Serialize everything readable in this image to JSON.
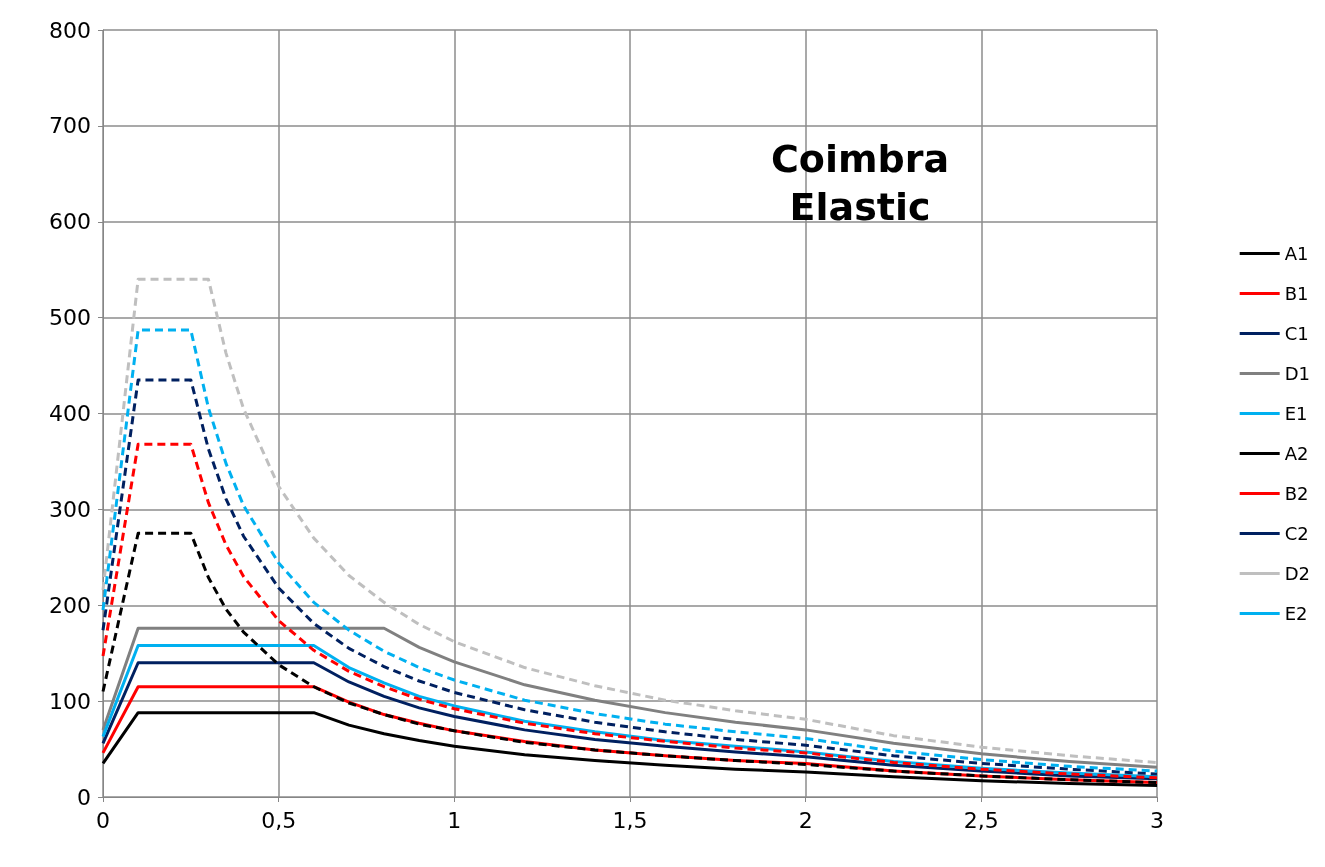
{
  "chart_data": {
    "type": "line",
    "title": "Coimbra\nElastic",
    "xlim": [
      0,
      3
    ],
    "xticks": [
      0,
      {
        "value": 0.5,
        "label": "0,5"
      },
      1,
      {
        "value": 1.5,
        "label": "1,5"
      },
      2,
      {
        "value": 2.5,
        "label": "2,5"
      },
      3
    ],
    "ylim": [
      0,
      800
    ],
    "yticks": [
      0,
      100,
      200,
      300,
      400,
      500,
      600,
      700,
      800
    ],
    "grid": true,
    "legend": "right",
    "marker": "none",
    "series": [
      {
        "name": "A1",
        "color": "#000000",
        "line_style": "solid",
        "x": [
          0,
          0.1,
          0.6,
          0.7,
          0.8,
          0.9,
          1,
          1.2,
          1.4,
          1.6,
          1.8,
          2,
          2.25,
          2.5,
          2.75,
          3
        ],
        "values": [
          35,
          88,
          88,
          75,
          66,
          59,
          53,
          44,
          38,
          33,
          29,
          26,
          21,
          17,
          14,
          12
        ]
      },
      {
        "name": "B1",
        "color": "#ff0000",
        "line_style": "solid",
        "x": [
          0,
          0.1,
          0.6,
          0.7,
          0.8,
          0.9,
          1,
          1.2,
          1.4,
          1.6,
          1.8,
          2,
          2.25,
          2.5,
          2.75,
          3
        ],
        "values": [
          46,
          115,
          115,
          99,
          86,
          77,
          69,
          58,
          49,
          43,
          38,
          35,
          27,
          22,
          18,
          15
        ]
      },
      {
        "name": "C1",
        "color": "#002060",
        "line_style": "solid",
        "x": [
          0,
          0.1,
          0.6,
          0.7,
          0.8,
          0.9,
          1,
          1.2,
          1.4,
          1.6,
          1.8,
          2,
          2.25,
          2.5,
          2.75,
          3
        ],
        "values": [
          56,
          140,
          140,
          120,
          105,
          93,
          84,
          70,
          60,
          53,
          47,
          42,
          33,
          27,
          22,
          19
        ]
      },
      {
        "name": "D1",
        "color": "#808080",
        "line_style": "solid",
        "x": [
          0,
          0.1,
          0.8,
          0.9,
          1,
          1.2,
          1.4,
          1.6,
          1.8,
          2,
          2.25,
          2.5,
          2.75,
          3
        ],
        "values": [
          70,
          176,
          176,
          156,
          141,
          117,
          101,
          88,
          78,
          70,
          56,
          45,
          37,
          31
        ]
      },
      {
        "name": "E1",
        "color": "#00b0f0",
        "line_style": "solid",
        "x": [
          0,
          0.1,
          0.6,
          0.7,
          0.8,
          0.9,
          1,
          1.2,
          1.4,
          1.6,
          1.8,
          2,
          2.25,
          2.5,
          2.75,
          3
        ],
        "values": [
          63,
          158,
          158,
          135,
          119,
          105,
          95,
          79,
          68,
          59,
          53,
          47,
          37,
          30,
          25,
          21
        ]
      },
      {
        "name": "A2",
        "color": "#000000",
        "line_style": "dashed",
        "x": [
          0,
          0.1,
          0.25,
          0.3,
          0.35,
          0.4,
          0.5,
          0.6,
          0.7,
          0.8,
          0.9,
          1,
          1.2,
          1.4,
          1.6,
          1.8,
          2,
          2.25,
          2.5,
          2.75,
          3
        ],
        "values": [
          110,
          275,
          275,
          229,
          196,
          172,
          138,
          115,
          98,
          86,
          76,
          69,
          57,
          49,
          43,
          38,
          34,
          27,
          22,
          18,
          15
        ]
      },
      {
        "name": "B2",
        "color": "#ff0000",
        "line_style": "dashed",
        "x": [
          0,
          0.1,
          0.25,
          0.3,
          0.35,
          0.4,
          0.5,
          0.6,
          0.7,
          0.8,
          0.9,
          1,
          1.2,
          1.4,
          1.6,
          1.8,
          2,
          2.25,
          2.5,
          2.75,
          3
        ],
        "values": [
          147,
          368,
          368,
          307,
          263,
          230,
          184,
          153,
          131,
          115,
          102,
          92,
          77,
          66,
          58,
          51,
          46,
          36,
          29,
          24,
          20
        ]
      },
      {
        "name": "C2",
        "color": "#002060",
        "line_style": "dashed",
        "x": [
          0,
          0.1,
          0.25,
          0.3,
          0.35,
          0.4,
          0.5,
          0.6,
          0.7,
          0.8,
          0.9,
          1,
          1.2,
          1.4,
          1.6,
          1.8,
          2,
          2.25,
          2.5,
          2.75,
          3
        ],
        "values": [
          174,
          435,
          435,
          363,
          311,
          272,
          218,
          181,
          155,
          136,
          121,
          109,
          91,
          78,
          68,
          60,
          54,
          43,
          35,
          29,
          24
        ]
      },
      {
        "name": "D2",
        "color": "#bfbfbf",
        "line_style": "dashed",
        "x": [
          0,
          0.1,
          0.3,
          0.35,
          0.4,
          0.5,
          0.6,
          0.7,
          0.8,
          0.9,
          1,
          1.2,
          1.4,
          1.6,
          1.8,
          2,
          2.25,
          2.5,
          2.75,
          3
        ],
        "values": [
          216,
          540,
          540,
          463,
          405,
          324,
          270,
          231,
          203,
          180,
          162,
          135,
          116,
          101,
          90,
          81,
          64,
          52,
          43,
          36
        ]
      },
      {
        "name": "E2",
        "color": "#00b0f0",
        "line_style": "dashed",
        "x": [
          0,
          0.1,
          0.25,
          0.3,
          0.35,
          0.4,
          0.5,
          0.6,
          0.7,
          0.8,
          0.9,
          1,
          1.2,
          1.4,
          1.6,
          1.8,
          2,
          2.25,
          2.5,
          2.75,
          3
        ],
        "values": [
          195,
          487,
          487,
          406,
          348,
          304,
          244,
          203,
          174,
          152,
          135,
          122,
          101,
          87,
          76,
          68,
          61,
          48,
          39,
          32,
          27
        ]
      }
    ]
  }
}
